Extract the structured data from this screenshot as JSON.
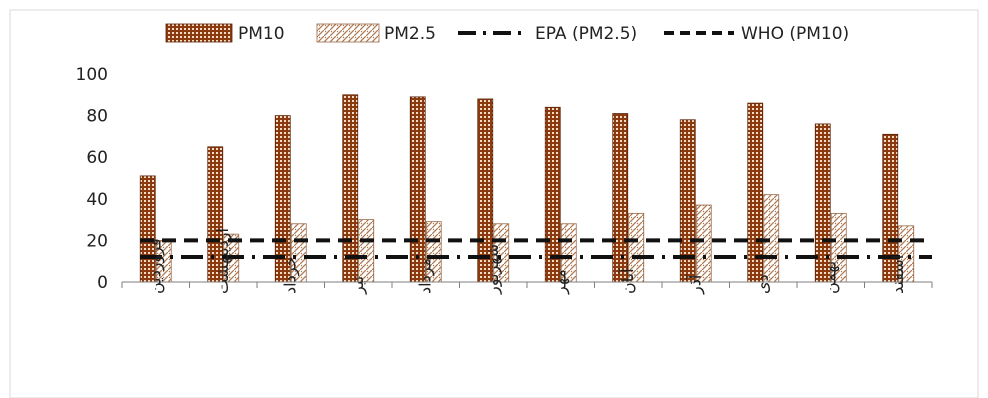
{
  "chart_data": {
    "type": "bar",
    "categories": [
      "فروردین",
      "اردیبهشت",
      "خرداد",
      "تیر",
      "مرداد",
      "شهریور",
      "مهر",
      "آبان",
      "آذر",
      "دی",
      "بهمن",
      "اسفند"
    ],
    "series": [
      {
        "name": "PM10",
        "values": [
          51,
          65,
          80,
          90,
          89,
          88,
          84,
          81,
          78,
          86,
          76,
          71
        ],
        "color": "#8B3A0F"
      },
      {
        "name": "PM2.5",
        "values": [
          20,
          23,
          28,
          30,
          29,
          28,
          28,
          33,
          37,
          42,
          33,
          27
        ],
        "color": "#C8A58A"
      }
    ],
    "reference_lines": [
      {
        "name": "EPA (PM2.5)",
        "value": 12,
        "style": "dash-dot"
      },
      {
        "name": "WHO (PM10)",
        "value": 20,
        "style": "dashed"
      }
    ],
    "ylim": [
      0,
      100
    ],
    "yticks": [
      0,
      20,
      40,
      60,
      80,
      100
    ],
    "xlabel": "",
    "ylabel": "",
    "grid": false,
    "legend_position": "top"
  }
}
